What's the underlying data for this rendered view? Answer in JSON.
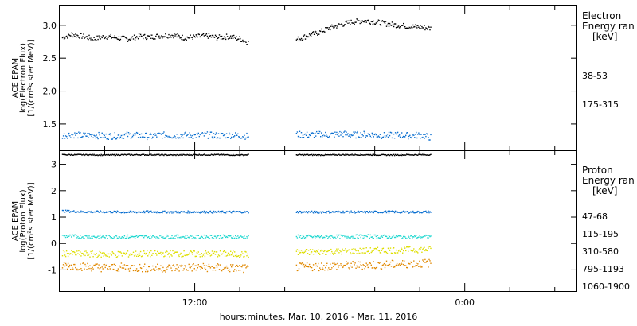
{
  "chart_data": [
    {
      "type": "scatter",
      "panel": "electron",
      "ylabel": [
        "ACE EPAM",
        "log(Electron Flux)",
        "[1/(cm²s ster MeV)]"
      ],
      "legend_title": [
        "Electron",
        "Energy ran",
        "[keV]"
      ],
      "ylim": [
        1.1,
        3.3
      ],
      "yticks": [
        1.5,
        2.0,
        2.5,
        3.0
      ],
      "ytick_labels": [
        "1.5",
        "2.0",
        "2.5",
        "3.0"
      ],
      "series": [
        {
          "name": "38-53",
          "color": "#000000",
          "points": [
            [
              0.2,
              2.82
            ],
            [
              1.0,
              2.87
            ],
            [
              2.0,
              2.84
            ],
            [
              3.0,
              2.8
            ],
            [
              4.0,
              2.84
            ],
            [
              5.0,
              2.82
            ],
            [
              6.0,
              2.8
            ],
            [
              7.0,
              2.84
            ],
            [
              8.0,
              2.83
            ],
            [
              9.0,
              2.85
            ],
            [
              10.0,
              2.86
            ],
            [
              11.0,
              2.82
            ],
            [
              12.0,
              2.83
            ],
            [
              13.0,
              2.85
            ],
            [
              14.0,
              2.82
            ],
            [
              15.0,
              2.84
            ],
            [
              16.0,
              2.8
            ],
            [
              16.8,
              2.74
            ],
            [
              21.0,
              2.79
            ],
            [
              22.0,
              2.85
            ],
            [
              23.0,
              2.9
            ],
            [
              24.0,
              2.97
            ],
            [
              25.0,
              3.02
            ],
            [
              26.0,
              3.06
            ],
            [
              27.0,
              3.08
            ],
            [
              28.0,
              3.06
            ],
            [
              29.0,
              3.03
            ],
            [
              30.0,
              3.01
            ],
            [
              31.0,
              2.99
            ],
            [
              32.0,
              2.98
            ],
            [
              33.0,
              2.96
            ]
          ]
        },
        {
          "name": "175-315",
          "color": "#0a6fd0",
          "points": [
            [
              0.2,
              1.33
            ],
            [
              1.0,
              1.35
            ],
            [
              2.0,
              1.33
            ],
            [
              3.0,
              1.34
            ],
            [
              4.0,
              1.32
            ],
            [
              5.0,
              1.33
            ],
            [
              6.0,
              1.34
            ],
            [
              7.0,
              1.33
            ],
            [
              8.0,
              1.32
            ],
            [
              9.0,
              1.34
            ],
            [
              10.0,
              1.33
            ],
            [
              11.0,
              1.34
            ],
            [
              12.0,
              1.33
            ],
            [
              13.0,
              1.34
            ],
            [
              14.0,
              1.33
            ],
            [
              15.0,
              1.34
            ],
            [
              16.0,
              1.33
            ],
            [
              16.8,
              1.32
            ],
            [
              21.0,
              1.35
            ],
            [
              22.0,
              1.34
            ],
            [
              23.0,
              1.35
            ],
            [
              24.0,
              1.34
            ],
            [
              25.0,
              1.36
            ],
            [
              26.0,
              1.34
            ],
            [
              27.0,
              1.35
            ],
            [
              28.0,
              1.34
            ],
            [
              29.0,
              1.33
            ],
            [
              30.0,
              1.34
            ],
            [
              31.0,
              1.33
            ],
            [
              32.0,
              1.34
            ],
            [
              33.0,
              1.3
            ]
          ]
        }
      ]
    },
    {
      "type": "scatter",
      "panel": "proton",
      "ylabel": [
        "ACE EPAM",
        "log(Proton Flux)",
        "[1/(cm²s ster MeV)]"
      ],
      "legend_title": [
        "Proton",
        "Energy ran",
        "[keV]"
      ],
      "ylim": [
        -1.8,
        3.5
      ],
      "yticks": [
        -1,
        0,
        1,
        2,
        3
      ],
      "ytick_labels": [
        "-1",
        "0",
        "1",
        "2",
        "3"
      ],
      "series": [
        {
          "name": "47-68",
          "color": "#000000",
          "points": [
            [
              0.2,
              3.38
            ],
            [
              2.0,
              3.38
            ],
            [
              4.0,
              3.37
            ],
            [
              6.0,
              3.38
            ],
            [
              8.0,
              3.38
            ],
            [
              10.0,
              3.37
            ],
            [
              12.0,
              3.38
            ],
            [
              14.0,
              3.38
            ],
            [
              16.0,
              3.37
            ],
            [
              16.8,
              3.38
            ],
            [
              21.0,
              3.38
            ],
            [
              23.0,
              3.37
            ],
            [
              25.0,
              3.38
            ],
            [
              27.0,
              3.38
            ],
            [
              29.0,
              3.37
            ],
            [
              31.0,
              3.38
            ],
            [
              33.0,
              3.38
            ]
          ]
        },
        {
          "name": "115-195",
          "color": "#0a6fd0",
          "points": [
            [
              0.2,
              1.25
            ],
            [
              2.0,
              1.22
            ],
            [
              4.0,
              1.22
            ],
            [
              6.0,
              1.21
            ],
            [
              8.0,
              1.22
            ],
            [
              10.0,
              1.21
            ],
            [
              12.0,
              1.22
            ],
            [
              14.0,
              1.21
            ],
            [
              16.0,
              1.22
            ],
            [
              16.8,
              1.21
            ],
            [
              21.0,
              1.22
            ],
            [
              23.0,
              1.21
            ],
            [
              25.0,
              1.22
            ],
            [
              27.0,
              1.21
            ],
            [
              29.0,
              1.22
            ],
            [
              31.0,
              1.21
            ],
            [
              33.0,
              1.22
            ]
          ]
        },
        {
          "name": "310-580",
          "color": "#20d8d0",
          "points": [
            [
              0.2,
              0.3
            ],
            [
              2.0,
              0.28
            ],
            [
              4.0,
              0.27
            ],
            [
              6.0,
              0.28
            ],
            [
              8.0,
              0.27
            ],
            [
              10.0,
              0.28
            ],
            [
              12.0,
              0.27
            ],
            [
              14.0,
              0.28
            ],
            [
              16.0,
              0.27
            ],
            [
              16.8,
              0.26
            ],
            [
              21.0,
              0.28
            ],
            [
              23.0,
              0.27
            ],
            [
              25.0,
              0.28
            ],
            [
              27.0,
              0.29
            ],
            [
              29.0,
              0.28
            ],
            [
              31.0,
              0.27
            ],
            [
              33.0,
              0.28
            ]
          ]
        },
        {
          "name": "795-1193",
          "color": "#dede00",
          "points": [
            [
              0.2,
              -0.35
            ],
            [
              2.0,
              -0.38
            ],
            [
              4.0,
              -0.4
            ],
            [
              6.0,
              -0.38
            ],
            [
              8.0,
              -0.37
            ],
            [
              10.0,
              -0.36
            ],
            [
              12.0,
              -0.38
            ],
            [
              14.0,
              -0.37
            ],
            [
              16.0,
              -0.39
            ],
            [
              16.8,
              -0.4
            ],
            [
              21.0,
              -0.32
            ],
            [
              23.0,
              -0.3
            ],
            [
              25.0,
              -0.28
            ],
            [
              27.0,
              -0.26
            ],
            [
              29.0,
              -0.24
            ],
            [
              31.0,
              -0.22
            ],
            [
              33.0,
              -0.2
            ]
          ]
        },
        {
          "name": "1060-1900",
          "color": "#e08800",
          "points": [
            [
              0.2,
              -0.8
            ],
            [
              2.0,
              -0.85
            ],
            [
              4.0,
              -0.9
            ],
            [
              6.0,
              -0.88
            ],
            [
              8.0,
              -0.92
            ],
            [
              10.0,
              -0.9
            ],
            [
              12.0,
              -0.88
            ],
            [
              14.0,
              -0.9
            ],
            [
              16.0,
              -0.92
            ],
            [
              16.8,
              -0.95
            ],
            [
              21.0,
              -0.88
            ],
            [
              23.0,
              -0.85
            ],
            [
              25.0,
              -0.82
            ],
            [
              27.0,
              -0.8
            ],
            [
              29.0,
              -0.78
            ],
            [
              31.0,
              -0.75
            ],
            [
              33.0,
              -0.72
            ]
          ]
        }
      ]
    }
  ],
  "xaxis": {
    "xlim": [
      0,
      46
    ],
    "major_ticks": [
      12,
      36
    ],
    "minor_ticks": [
      4,
      8,
      16,
      20,
      28,
      32,
      40,
      44
    ],
    "tick_labels": [
      {
        "x": 12,
        "label": "12:00"
      },
      {
        "x": 36,
        "label": "0:00"
      }
    ],
    "label": "hours:minutes, Mar. 10, 2016 - Mar. 11, 2016"
  }
}
